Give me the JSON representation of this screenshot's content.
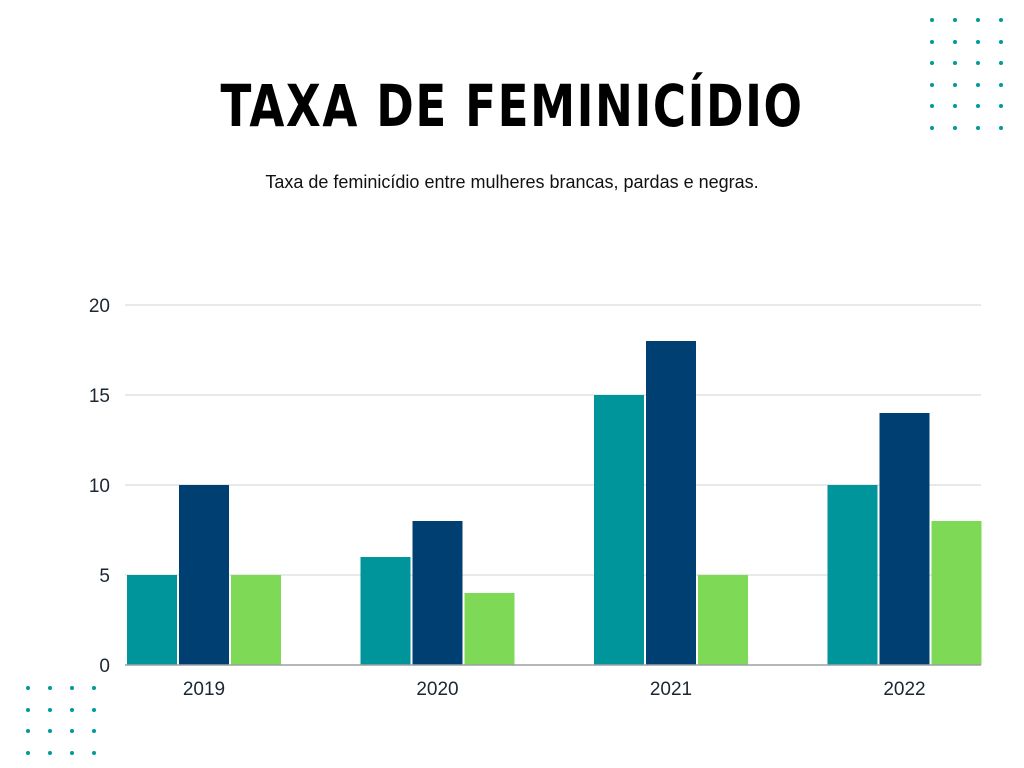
{
  "header": {
    "title": "TAXA DE FEMINICÍDIO",
    "subtitle": "Taxa de feminicídio entre mulheres brancas, pardas e negras."
  },
  "decor": {
    "dot_color": "#009a9a"
  },
  "chart_data": {
    "type": "bar",
    "title": "TAXA DE FEMINICÍDIO",
    "subtitle": "Taxa de feminicídio entre mulheres brancas, pardas e negras.",
    "categories": [
      "2019",
      "2020",
      "2021",
      "2022"
    ],
    "series": [
      {
        "values": [
          5,
          6,
          15,
          10
        ],
        "color": "#00959a"
      },
      {
        "values": [
          10,
          8,
          18,
          14
        ],
        "color": "#003f72"
      },
      {
        "values": [
          5,
          4,
          5,
          8
        ],
        "color": "#7ed957"
      }
    ],
    "y_ticks": [
      "0",
      "5",
      "10",
      "15",
      "20"
    ],
    "ylim": [
      0,
      20
    ],
    "xlabel": "",
    "ylabel": "",
    "grid": true,
    "legend": "none"
  }
}
